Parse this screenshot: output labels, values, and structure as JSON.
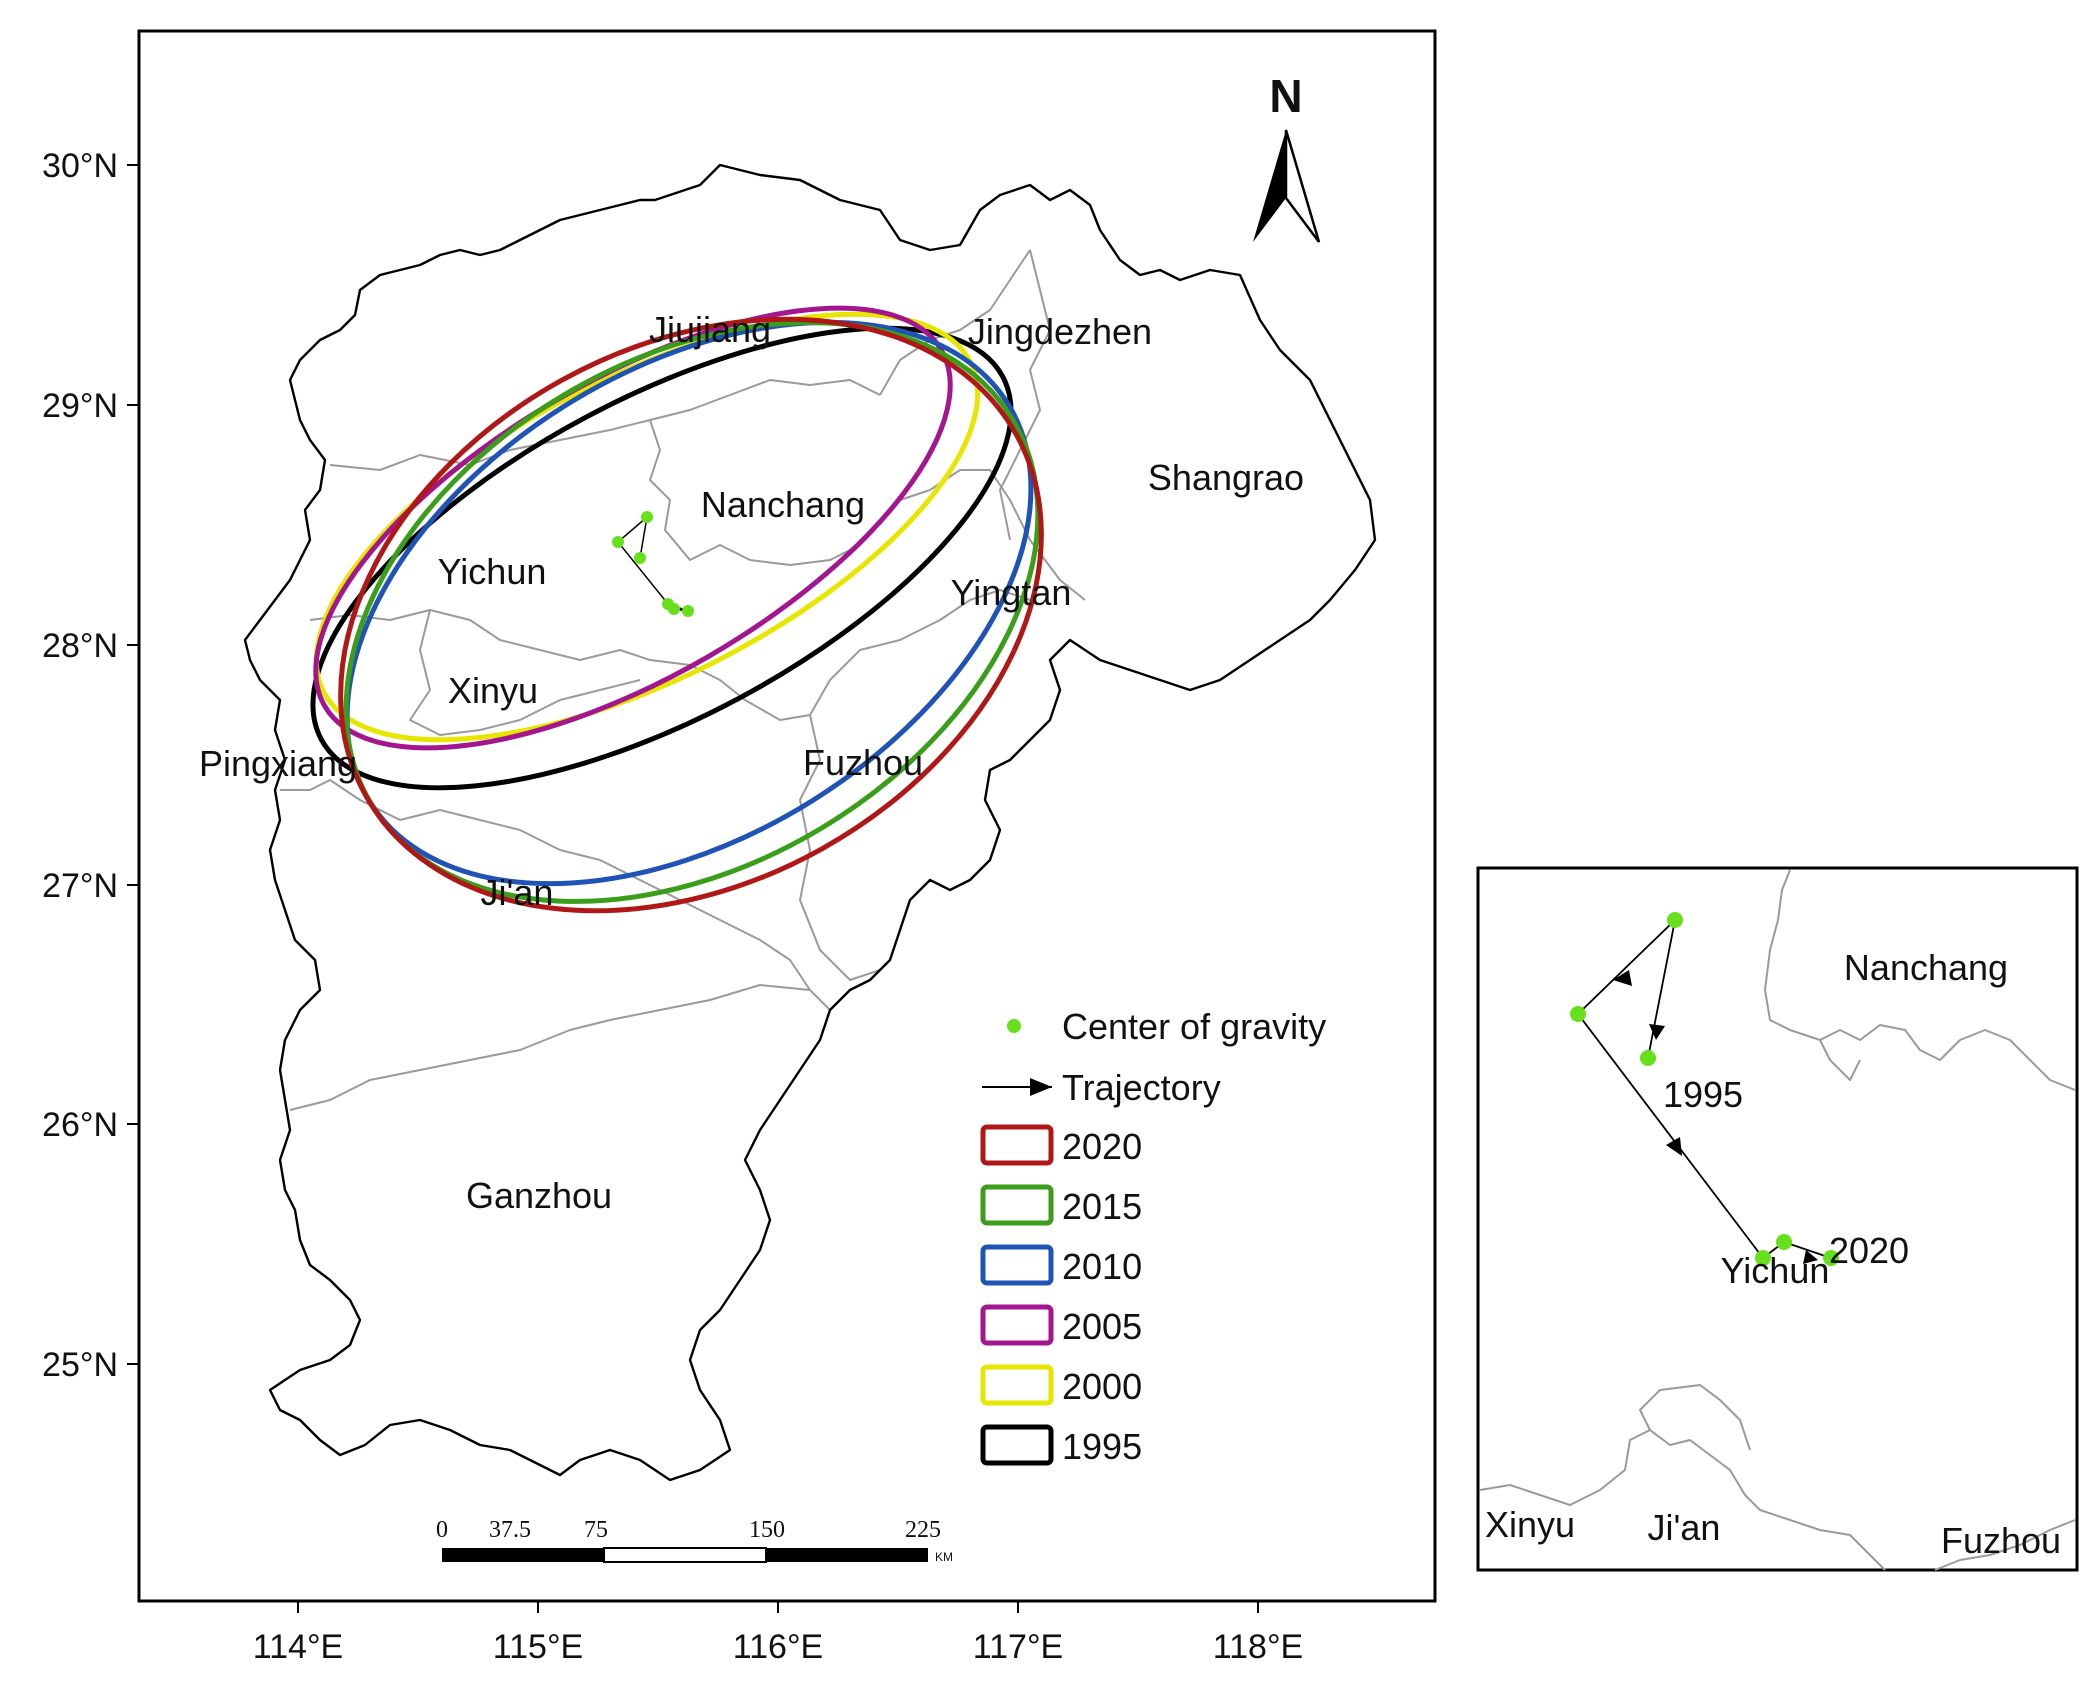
{
  "main_map": {
    "lat_labels": [
      "30°N",
      "29°N",
      "28°N",
      "27°N",
      "26°N",
      "25°N"
    ],
    "lon_labels": [
      "114°E",
      "115°E",
      "116°E",
      "117°E",
      "118°E"
    ],
    "north_arrow_label": "N",
    "places": {
      "jiujiang": "Jiujiang",
      "jingdezhen": "Jingdezhen",
      "nanchang": "Nanchang",
      "shangrao": "Shangrao",
      "yichun": "Yichun",
      "yingtan": "Yingtan",
      "xinyu": "Xinyu",
      "pingxiang": "Pingxiang",
      "fuzhou": "Fuzhou",
      "jian": "Ji'an",
      "ganzhou": "Ganzhou"
    },
    "scale_bar": {
      "ticks": [
        "0",
        "37.5",
        "75",
        "150",
        "225"
      ],
      "unit": "KM"
    }
  },
  "legend": {
    "center_label": "Center of gravity",
    "trajectory_label": "Trajectory",
    "ellipses": [
      {
        "year": "2020",
        "color": "#b01818"
      },
      {
        "year": "2015",
        "color": "#3a9e1a"
      },
      {
        "year": "2010",
        "color": "#1f53b5"
      },
      {
        "year": "2005",
        "color": "#a3168f"
      },
      {
        "year": "2000",
        "color": "#e6e600"
      },
      {
        "year": "1995",
        "color": "#000000"
      }
    ]
  },
  "marker_color": "#66e01c",
  "inset": {
    "places": {
      "nanchang": "Nanchang",
      "yichun": "Yichun",
      "xinyu": "Xinyu",
      "jian": "Ji'an",
      "fuzhou": "Fuzhou"
    },
    "labels": {
      "start": "1995",
      "end": "2020"
    }
  }
}
